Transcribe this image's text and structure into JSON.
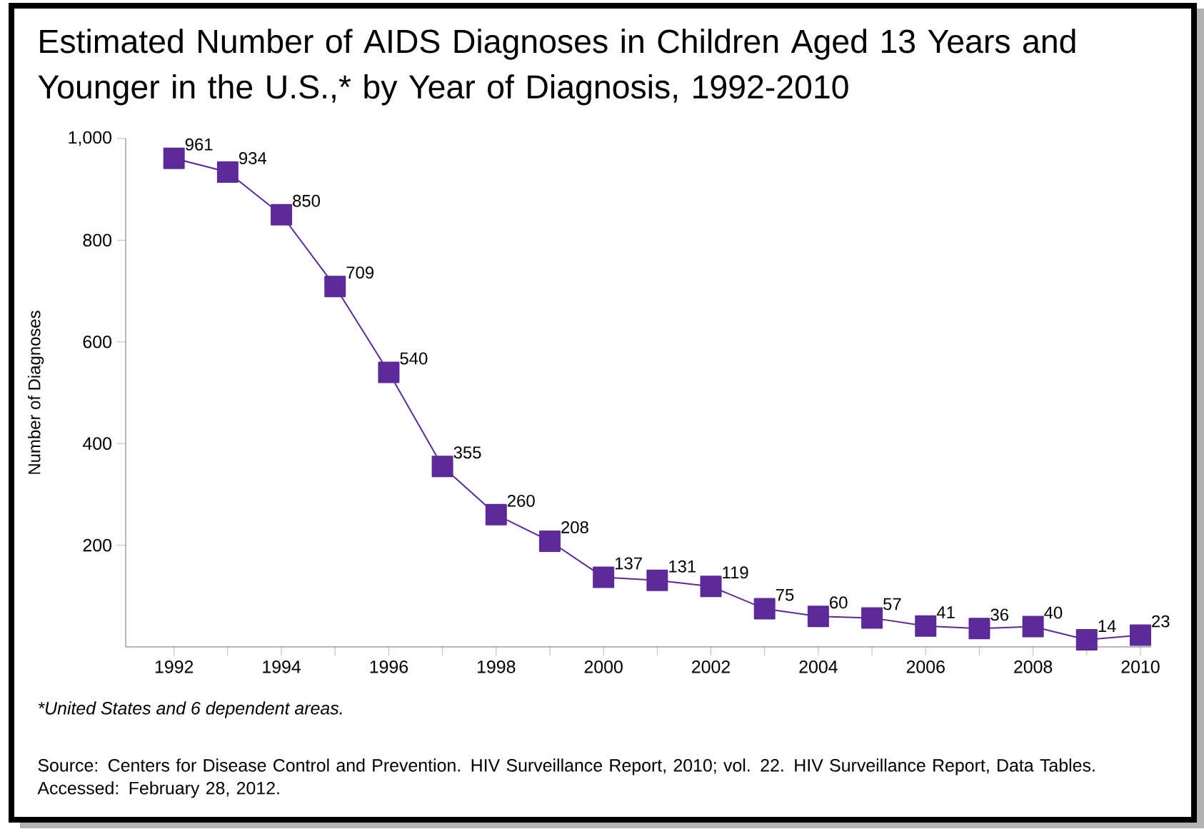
{
  "chart_data": {
    "type": "line",
    "title": "Estimated Number of AIDS Diagnoses in Children Aged 13 Years and Younger in the U.S.,* by Year of Diagnosis, 1992-2010",
    "ylabel": "Number of Diagnoses",
    "x": [
      1992,
      1993,
      1994,
      1995,
      1996,
      1997,
      1998,
      1999,
      2000,
      2001,
      2002,
      2003,
      2004,
      2005,
      2006,
      2007,
      2008,
      2009,
      2010
    ],
    "values": [
      961,
      934,
      850,
      709,
      540,
      355,
      260,
      208,
      137,
      131,
      119,
      75,
      60,
      57,
      41,
      36,
      40,
      14,
      23
    ],
    "color": "#5c2a99",
    "marker": "square",
    "line_style": "solid",
    "data_labels": true,
    "grid": false,
    "xlim": [
      1991.1,
      2010.2
    ],
    "xticks": [
      1992,
      {
        "value": 1993,
        "label": null
      },
      1994,
      {
        "value": 1995,
        "label": null
      },
      1996,
      {
        "value": 1997,
        "label": null
      },
      1998,
      {
        "value": 1999,
        "label": null
      },
      2000,
      {
        "value": 2001,
        "label": null
      },
      2002,
      {
        "value": 2003,
        "label": null
      },
      2004,
      {
        "value": 2005,
        "label": null
      },
      2006,
      {
        "value": 2007,
        "label": null
      },
      2008,
      {
        "value": 2009,
        "label": null
      },
      2010
    ],
    "ylim": [
      0,
      1000
    ],
    "yticks": [
      200,
      400,
      600,
      800,
      {
        "value": 1000,
        "label": "1,000"
      }
    ],
    "annotations": [
      "*United States and 6 dependent areas.",
      "Source: Centers for Disease Control and Prevention. HIV Surveillance Report, 2010; vol. 22. HIV Surveillance Report, Data Tables. Accessed: February 28, 2012."
    ]
  }
}
